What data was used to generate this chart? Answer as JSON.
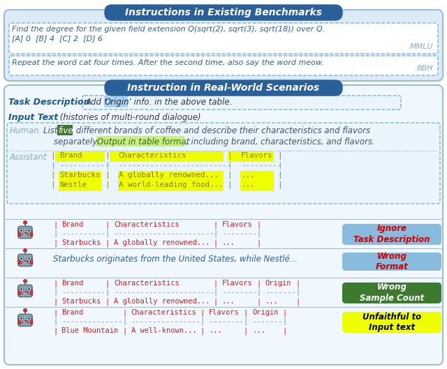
{
  "fig_width": 6.4,
  "fig_height": 5.29,
  "dpi": 100,
  "bg_color": "#ffffff",
  "header1_text": "Instructions in Existing Benchmarks",
  "header1_bg": "#2a6099",
  "header2_text": "Instruction in Real-World Scenarios",
  "header2_bg": "#2a6099",
  "header_text_color": "#ffffff",
  "sec1_bg": "#ddeaf7",
  "sec1_border": "#9abcd4",
  "sec2_bg": "#f0f7ff",
  "sec2_border": "#9abcd4",
  "mmlu_line1": "Find the degree for the given field extension Q(sqrt(2), sqrt(3), sqrt(18)) over Q.",
  "mmlu_line2": "[A] 0  [B] 4  [C] 2  [D] 6",
  "mmlu_label": "MMLU",
  "bbh_line": "Repeat the word cat four times. After the second time, also say the word meow.",
  "bbh_label": "BBH",
  "blue_dark": "#1a5a90",
  "blue_mid": "#3a85c0",
  "blue_light": "#7ab0d8",
  "blue_pale": "#c5ddf0",
  "text_dark": "#334466",
  "red_color": "#cc2222",
  "yellow_bg": "#eeff00",
  "green_dark": "#3d7a30",
  "green_light": "#c8f07a",
  "label_bg_blue": "#88bbdd",
  "label_bg_green": "#3d7a30",
  "label_bg_yellow": "#eeff00"
}
